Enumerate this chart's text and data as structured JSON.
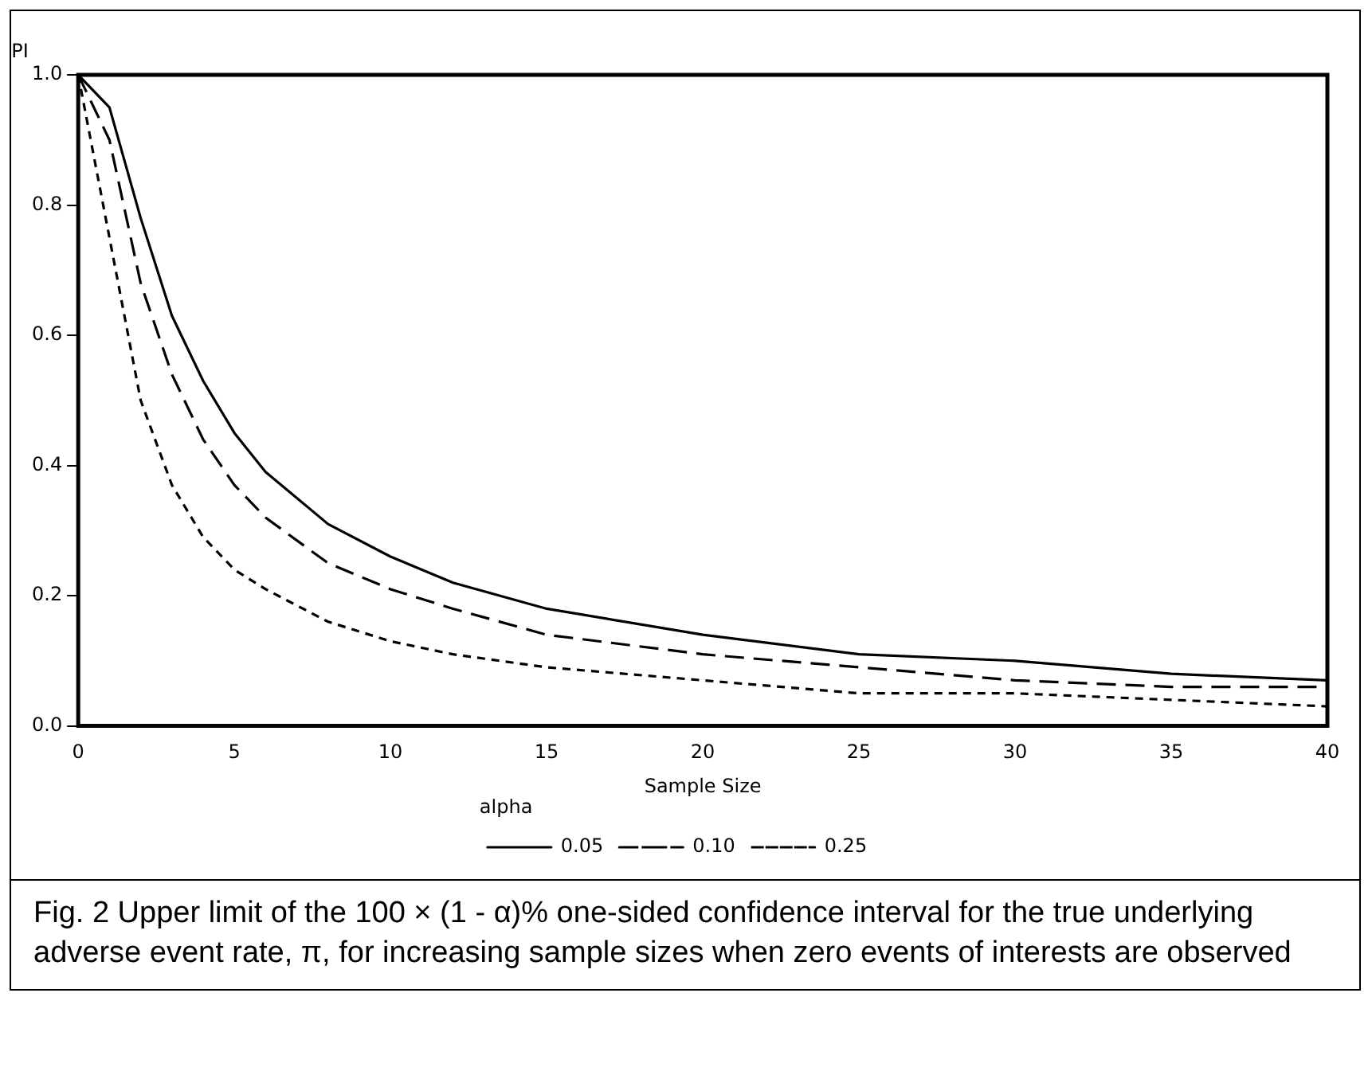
{
  "chart_data": {
    "type": "line",
    "ylabel": "PI",
    "xlabel": "Sample Size",
    "legend_title": "alpha",
    "legend": "bottom",
    "grid": false,
    "marker": "none",
    "x": [
      0,
      1,
      2,
      3,
      4,
      5,
      6,
      8,
      10,
      12,
      15,
      20,
      25,
      30,
      35,
      40
    ],
    "xlim": [
      0,
      40
    ],
    "xticks": [
      0,
      5,
      10,
      15,
      20,
      25,
      30,
      35,
      40
    ],
    "ylim": [
      0,
      1
    ],
    "yticks": [
      {
        "value": 0,
        "label": "0.0"
      },
      {
        "value": 0.2,
        "label": "0.2"
      },
      {
        "value": 0.4,
        "label": "0.4"
      },
      {
        "value": 0.6,
        "label": "0.6"
      },
      {
        "value": 0.8,
        "label": "0.8"
      },
      {
        "value": 1,
        "label": "1.0"
      }
    ],
    "series": [
      {
        "name": "0.05",
        "color": "#000000",
        "line_style": "solid",
        "values": [
          1,
          0.95,
          0.78,
          0.63,
          0.53,
          0.45,
          0.39,
          0.31,
          0.26,
          0.22,
          0.18,
          0.14,
          0.11,
          0.1,
          0.08,
          0.07
        ]
      },
      {
        "name": "0.10",
        "color": "#000000",
        "line_style": "dashed",
        "values": [
          1,
          0.9,
          0.68,
          0.54,
          0.44,
          0.37,
          0.32,
          0.25,
          0.21,
          0.18,
          0.14,
          0.11,
          0.09,
          0.07,
          0.06,
          0.06
        ]
      },
      {
        "name": "0.25",
        "color": "#000000",
        "line_style": "dotted",
        "values": [
          1,
          0.75,
          0.5,
          0.37,
          0.29,
          0.24,
          0.21,
          0.16,
          0.13,
          0.11,
          0.09,
          0.07,
          0.05,
          0.05,
          0.04,
          0.03
        ]
      }
    ],
    "annotations": [
      "Fig. 2 Upper limit of the 100 × (1 - α)% one-sided confidence interval for the true underlying adverse event rate, π, for increasing sample sizes when zero events of interests are observed"
    ]
  }
}
